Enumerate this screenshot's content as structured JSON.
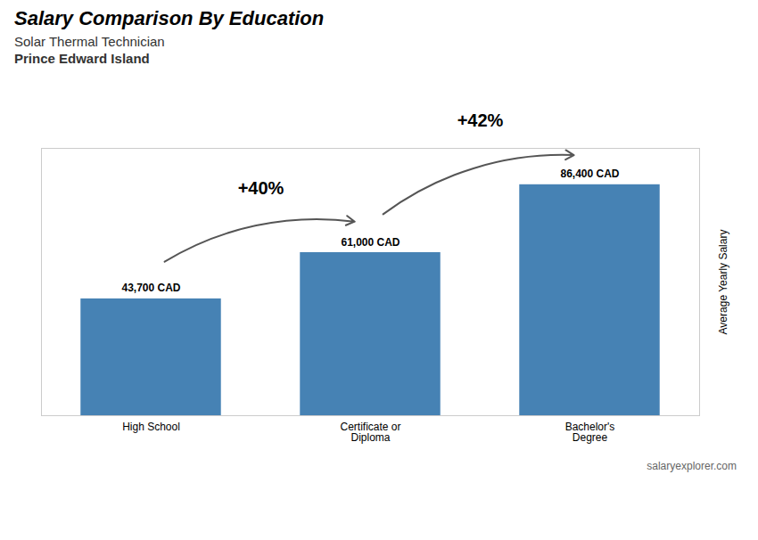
{
  "chart_data": {
    "type": "bar",
    "title": "Salary Comparison By Education",
    "subtitle": [
      "Solar Thermal Technician",
      "Prince Edward Island"
    ],
    "categories": [
      "High School",
      "Certificate or\nDiploma",
      "Bachelor's\nDegree"
    ],
    "values": [
      43700,
      61000,
      86400
    ],
    "value_labels": [
      "43,700 CAD",
      "61,000 CAD",
      "86,400 CAD"
    ],
    "data_labels": true,
    "ylabel": "Average Yearly Salary",
    "ylim": [
      0,
      100000
    ],
    "tick_labels": "x",
    "annotations": [
      "+40%",
      "+42%"
    ],
    "caption": "salaryexplorer.com"
  }
}
